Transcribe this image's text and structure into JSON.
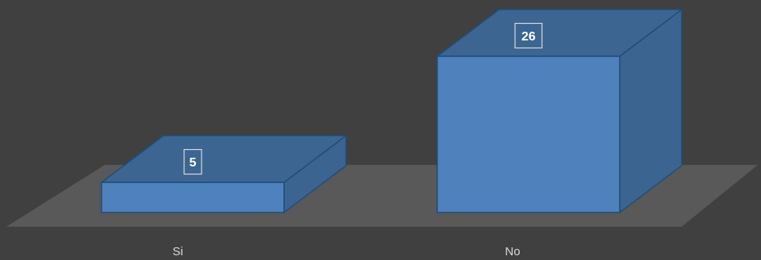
{
  "chart_data": {
    "type": "bar",
    "style": "3d-box",
    "categories": [
      "Si",
      "No"
    ],
    "values": [
      5,
      26
    ],
    "data_labels": [
      "5",
      "26"
    ],
    "title": "",
    "xlabel": "",
    "ylabel": "",
    "grid": false,
    "legend": "none",
    "colors": {
      "background": "#404040",
      "floor": "#595959",
      "bar_front": "#4f81bd",
      "bar_top": "#3c6592",
      "bar_side": "#3b6590",
      "bar_edge": "#1f4e79"
    }
  }
}
